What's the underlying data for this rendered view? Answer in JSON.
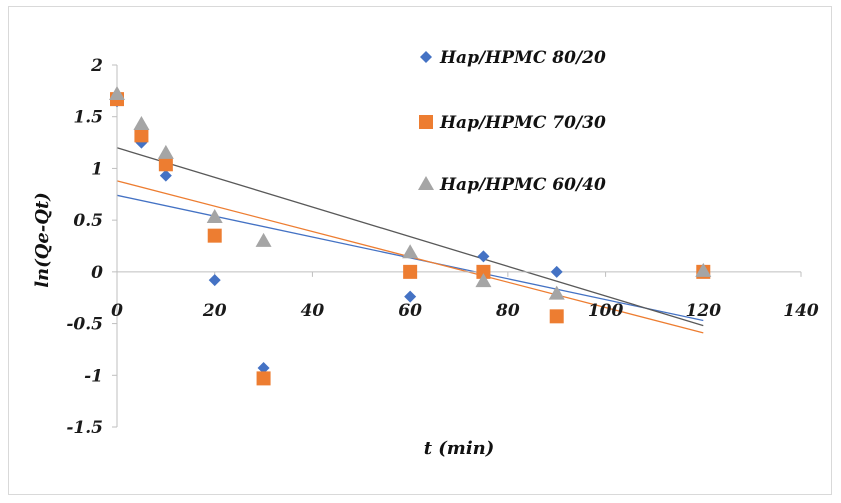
{
  "chart_data": {
    "type": "scatter",
    "title": "",
    "xlabel": "t (min)",
    "ylabel": "ln(Qe-Qt)",
    "xlim": [
      0,
      140
    ],
    "ylim": [
      -1.5,
      2
    ],
    "xticks": [
      0,
      20,
      40,
      60,
      80,
      100,
      120,
      140
    ],
    "yticks": [
      2,
      1.5,
      1,
      0.5,
      0,
      -0.5,
      -1,
      -1.5
    ],
    "xtick_labels": [
      "0",
      "20",
      "40",
      "60",
      "80",
      "100",
      "120",
      "140"
    ],
    "ytick_labels": [
      "2",
      "1.5",
      "1",
      "0.5",
      "0",
      "-0.5",
      "-1",
      "-1.5"
    ],
    "grid": false,
    "legend_position": "top-right",
    "series": [
      {
        "name": "Hap/HPMC 80/20",
        "marker": "diamond",
        "color": "#4472C4",
        "x": [
          0,
          5,
          10,
          20,
          30,
          60,
          75,
          90,
          120
        ],
        "y": [
          1.65,
          1.25,
          0.93,
          -0.08,
          -0.93,
          -0.24,
          0.15,
          0.0,
          0.0
        ],
        "trendline": {
          "color": "#4472C4",
          "x": [
            0,
            120
          ],
          "y": [
            0.74,
            -0.47
          ]
        }
      },
      {
        "name": "Hap/HPMC 70/30",
        "marker": "square",
        "color": "#ED7D31",
        "x": [
          0,
          5,
          10,
          20,
          30,
          60,
          75,
          90,
          120
        ],
        "y": [
          1.67,
          1.32,
          1.04,
          0.35,
          -1.03,
          0.0,
          0.0,
          -0.43,
          0.0
        ],
        "trendline": {
          "color": "#ED7D31",
          "x": [
            0,
            120
          ],
          "y": [
            0.88,
            -0.59
          ]
        }
      },
      {
        "name": "Hap/HPMC 60/40",
        "marker": "triangle",
        "color": "#A5A5A5",
        "x": [
          0,
          5,
          10,
          20,
          30,
          60,
          75,
          90,
          120
        ],
        "y": [
          1.72,
          1.43,
          1.15,
          0.53,
          0.3,
          0.19,
          -0.09,
          -0.21,
          0.01
        ],
        "trendline": {
          "color": "#595959",
          "x": [
            0,
            120
          ],
          "y": [
            1.2,
            -0.52
          ]
        }
      }
    ]
  }
}
